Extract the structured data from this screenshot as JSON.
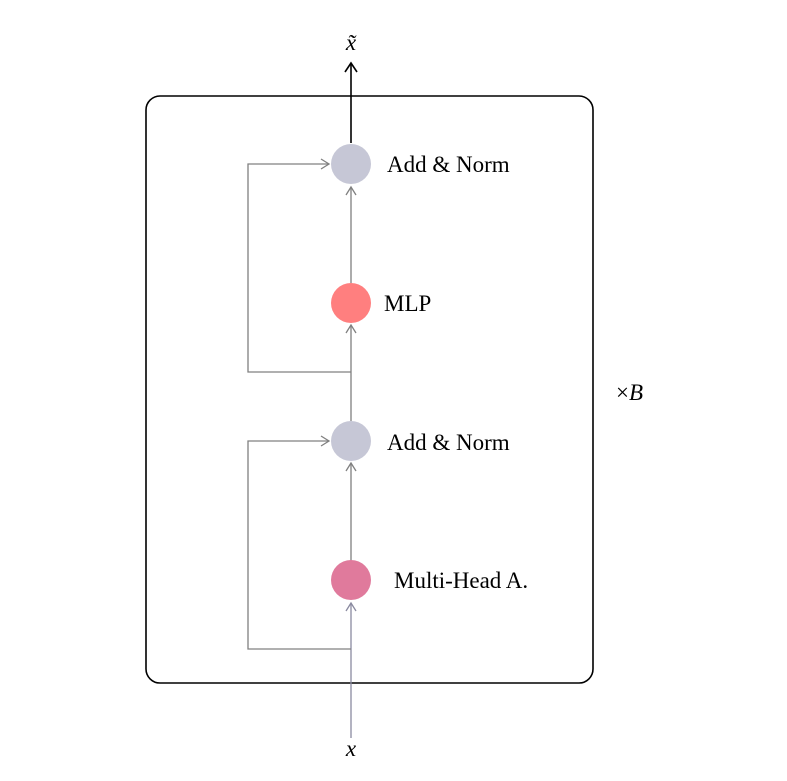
{
  "diagram": {
    "input_label": "x",
    "output_label": "x̃",
    "repeat": {
      "operator": "×",
      "variable": "B"
    },
    "nodes": [
      {
        "id": "add-norm-top",
        "label": "Add & Norm",
        "color": "#c6c7d6"
      },
      {
        "id": "mlp",
        "label": "MLP",
        "color": "#ff7f7f"
      },
      {
        "id": "add-norm-bottom",
        "label": "Add & Norm",
        "color": "#c6c7d6"
      },
      {
        "id": "multi-head-attention",
        "label": "Multi-Head A.",
        "color": "#e07a9c"
      }
    ],
    "colors": {
      "frame": "#000000",
      "connector": "#808080",
      "input_arrow": "#8a8aa0"
    }
  }
}
